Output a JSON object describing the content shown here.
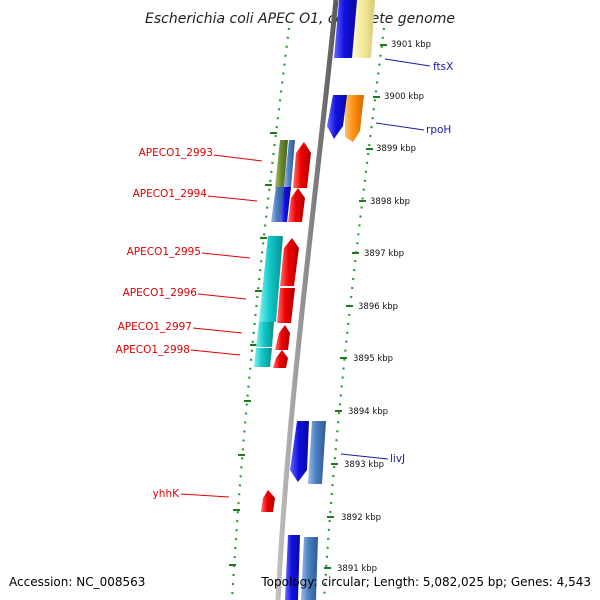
{
  "title": "Escherichia coli APEC O1, complete genome",
  "accession": "Accession: NC_008563",
  "topology": "Topology: circular; Length: 5,082,025 bp; Genes: 4,543",
  "kbp_ticks": [
    {
      "label": "3901 kbp"
    },
    {
      "label": "3900 kbp"
    },
    {
      "label": "3899 kbp"
    },
    {
      "label": "3898 kbp"
    },
    {
      "label": "3897 kbp"
    },
    {
      "label": "3896 kbp"
    },
    {
      "label": "3895 kbp"
    },
    {
      "label": "3894 kbp"
    },
    {
      "label": "3893 kbp"
    },
    {
      "label": "3892 kbp"
    },
    {
      "label": "3891 kbp"
    }
  ],
  "gene_labels_left": [
    {
      "label": "APECO1_2993"
    },
    {
      "label": "APECO1_2994"
    },
    {
      "label": "APECO1_2995"
    },
    {
      "label": "APECO1_2996"
    },
    {
      "label": "APECO1_2997"
    },
    {
      "label": "APECO1_2998"
    },
    {
      "label": "yhhK"
    }
  ],
  "gene_labels_right": [
    {
      "label": "ftsX"
    },
    {
      "label": "rpoH"
    },
    {
      "label": "livJ"
    }
  ],
  "colors": {
    "backbone": "#8c8c8c",
    "ring_dots": "#2e9a2e",
    "ticks": "#1e7a1e",
    "cds_red": "#f00000",
    "cds_blue": "#1010e0",
    "cds_steel": "#4a7fc0",
    "cds_cyan": "#10c8c8",
    "cds_olive": "#6a8a30",
    "cds_orange": "#ff9010",
    "cds_yellow": "#f5eb9c",
    "label_red": "#e00000",
    "label_blue": "#1a1aa8"
  }
}
